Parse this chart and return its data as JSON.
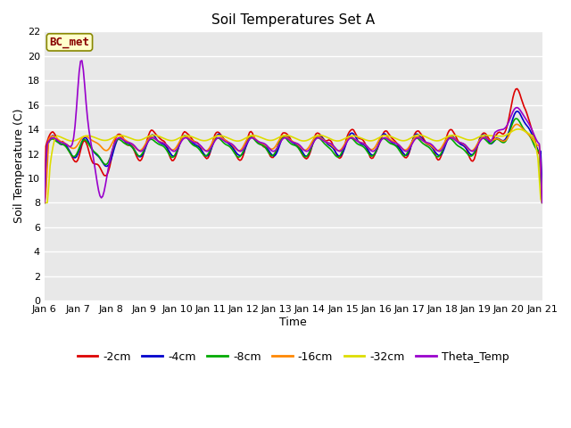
{
  "title": "Soil Temperatures Set A",
  "xlabel": "Time",
  "ylabel": "Soil Temperature (C)",
  "ylim": [
    0,
    22
  ],
  "yticks": [
    0,
    2,
    4,
    6,
    8,
    10,
    12,
    14,
    16,
    18,
    20,
    22
  ],
  "series_colors": {
    "-2cm": "#dd0000",
    "-4cm": "#0000cc",
    "-8cm": "#00aa00",
    "-16cm": "#ff8800",
    "-32cm": "#dddd00",
    "Theta_Temp": "#9900cc"
  },
  "legend_labels": [
    "-2cm",
    "-4cm",
    "-8cm",
    "-16cm",
    "-32cm",
    "Theta_Temp"
  ],
  "annotation_text": "BC_met",
  "annotation_color": "#880000",
  "annotation_bg": "#ffffcc",
  "annotation_edge": "#888800",
  "fig_bg": "#ffffff",
  "plot_bg": "#e8e8e8",
  "grid_color": "#ffffff",
  "title_fontsize": 11,
  "axis_fontsize": 9,
  "tick_fontsize": 8,
  "legend_fontsize": 9,
  "linewidth": 1.2
}
